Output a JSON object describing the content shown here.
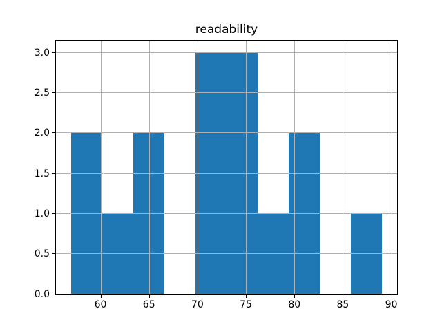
{
  "figure": {
    "background": "#ffffff"
  },
  "chart_data": {
    "type": "bar",
    "chart_kind": "histogram",
    "title": "readability",
    "bin_edges": [
      57.0,
      60.2,
      63.4,
      66.6,
      69.8,
      73.0,
      76.2,
      79.4,
      82.6,
      85.8,
      89.0
    ],
    "counts": [
      2,
      1,
      2,
      0,
      3,
      3,
      1,
      2,
      0,
      1
    ],
    "xlim": [
      55.4,
      90.6
    ],
    "ylim": [
      0,
      3.15
    ],
    "xticks": [
      60,
      65,
      70,
      75,
      80,
      85,
      90
    ],
    "xtick_labels": [
      "60",
      "65",
      "70",
      "75",
      "80",
      "85",
      "90"
    ],
    "yticks": [
      0.0,
      0.5,
      1.0,
      1.5,
      2.0,
      2.5,
      3.0
    ],
    "ytick_labels": [
      "0.0",
      "0.5",
      "1.0",
      "1.5",
      "2.0",
      "2.5",
      "3.0"
    ],
    "xlabel": "",
    "ylabel": "",
    "grid": true,
    "grid_above_bars": true,
    "legend": false,
    "colors": {
      "bar": "#1f77b4",
      "grid": "#b0b0b0",
      "spine": "#000000",
      "text": "#000000"
    }
  }
}
